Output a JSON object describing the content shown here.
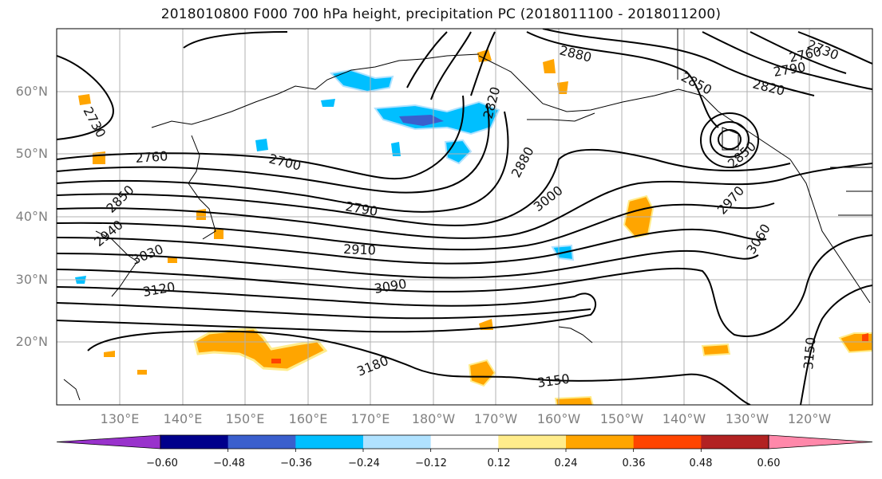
{
  "title": "2018010800 F000 700 hPa height, precipitation PC (2018011100 - 2018011200)",
  "map": {
    "lat_labels": [
      "60°N",
      "50°N",
      "40°N",
      "30°N",
      "20°N"
    ],
    "lon_labels": [
      "130°E",
      "140°E",
      "150°E",
      "160°E",
      "170°E",
      "180°W",
      "170°W",
      "160°W",
      "150°W",
      "140°W",
      "130°W",
      "120°W"
    ],
    "grid": true,
    "contour_color": "#000000",
    "land_outline_color": "#000000",
    "contour_labels": [
      "2880",
      "2820",
      "2850",
      "2820",
      "2790",
      "2760",
      "2730",
      "2700",
      "2730",
      "2760",
      "2850",
      "2940",
      "3030",
      "3120",
      "2790",
      "2910",
      "3090",
      "2880",
      "3000",
      "2970",
      "2850",
      "3060",
      "3180",
      "3150",
      "3150"
    ]
  },
  "colorbar": {
    "colors": [
      "#9932cc",
      "#00008b",
      "#3a5fcd",
      "#00bfff",
      "#b0e2ff",
      "#ffffff",
      "#ffec8b",
      "#ffa500",
      "#ff4500",
      "#b22222",
      "#ff88aa"
    ],
    "tick_labels": [
      "−0.60",
      "−0.48",
      "−0.36",
      "−0.24",
      "−0.12",
      "0.12",
      "0.24",
      "0.36",
      "0.48",
      "0.60"
    ]
  }
}
